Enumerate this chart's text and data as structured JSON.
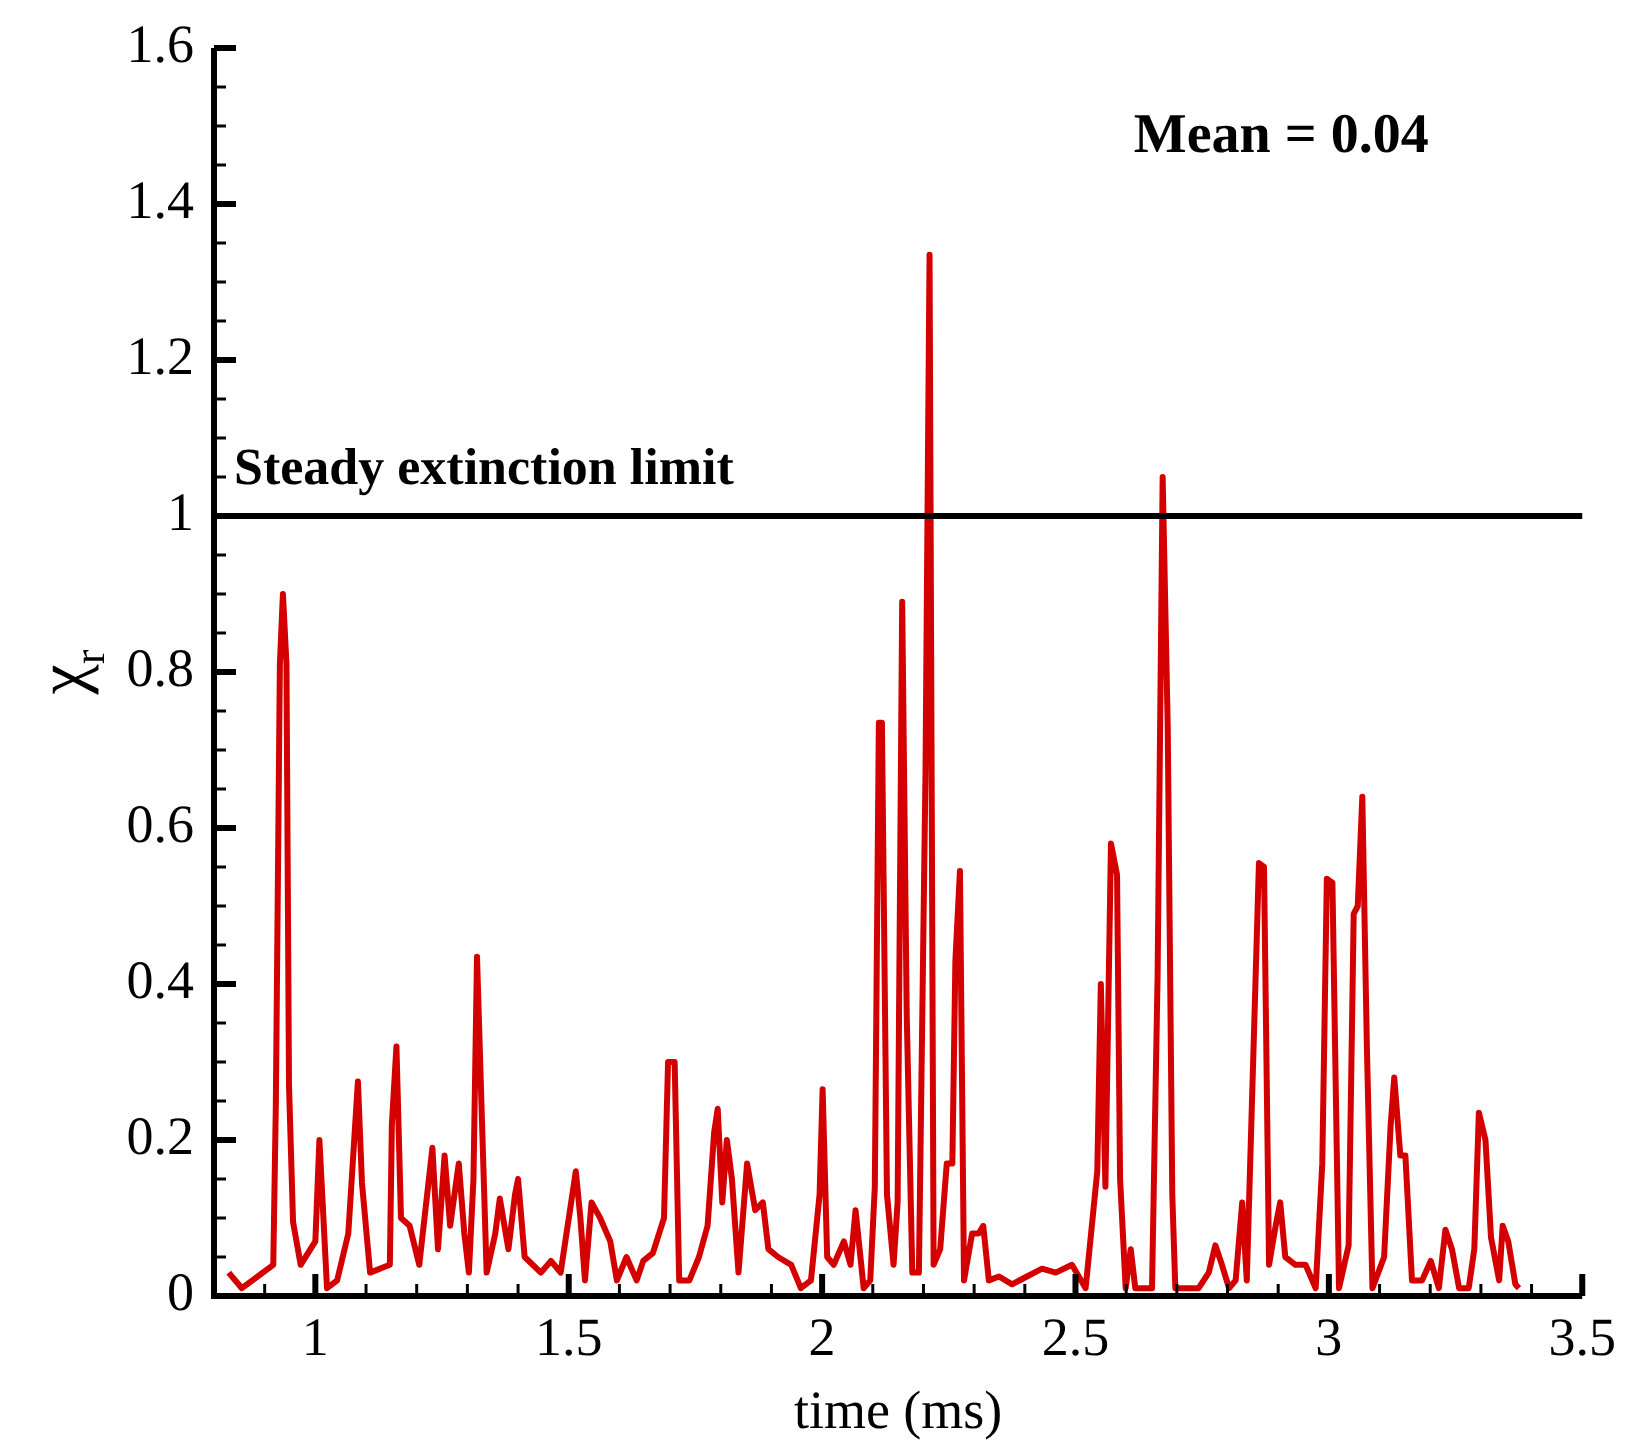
{
  "chart_data": {
    "type": "line",
    "xlabel": "time (ms)",
    "ylabel": "χ$_{r}$",
    "annotations": [
      "Mean = 0.04"
    ],
    "ref_lines": [
      {
        "axis": "y",
        "value": 1,
        "label": "Steady extinction limit",
        "color": "#000000"
      }
    ],
    "xlim": [
      0.8,
      3.5
    ],
    "ylim": [
      0,
      1.6
    ],
    "xticks": [
      {
        "value": 0.8,
        "label": null
      },
      {
        "value": 0.9,
        "label": null
      },
      1,
      {
        "value": 1.1,
        "label": null
      },
      {
        "value": 1.2,
        "label": null
      },
      {
        "value": 1.3,
        "label": null
      },
      {
        "value": 1.4,
        "label": null
      },
      1.5,
      {
        "value": 1.6,
        "label": null
      },
      {
        "value": 1.7,
        "label": null
      },
      {
        "value": 1.8,
        "label": null
      },
      {
        "value": 1.9,
        "label": null
      },
      2,
      {
        "value": 2.1,
        "label": null
      },
      {
        "value": 2.2,
        "label": null
      },
      {
        "value": 2.3,
        "label": null
      },
      {
        "value": 2.4,
        "label": null
      },
      2.5,
      {
        "value": 2.6,
        "label": null
      },
      {
        "value": 2.7,
        "label": null
      },
      {
        "value": 2.8,
        "label": null
      },
      {
        "value": 2.9,
        "label": null
      },
      3,
      {
        "value": 3.1,
        "label": null
      },
      {
        "value": 3.2,
        "label": null
      },
      {
        "value": 3.3,
        "label": null
      },
      {
        "value": 3.4,
        "label": null
      },
      3.5
    ],
    "yticks": [
      0,
      {
        "value": 0.05,
        "label": null
      },
      {
        "value": 0.1,
        "label": null
      },
      {
        "value": 0.15,
        "label": null
      },
      0.2,
      {
        "value": 0.25,
        "label": null
      },
      {
        "value": 0.3,
        "label": null
      },
      {
        "value": 0.35,
        "label": null
      },
      0.4,
      {
        "value": 0.45,
        "label": null
      },
      {
        "value": 0.5,
        "label": null
      },
      {
        "value": 0.55,
        "label": null
      },
      0.6,
      {
        "value": 0.65,
        "label": null
      },
      {
        "value": 0.7,
        "label": null
      },
      {
        "value": 0.75,
        "label": null
      },
      0.8,
      {
        "value": 0.85,
        "label": null
      },
      {
        "value": 0.9,
        "label": null
      },
      {
        "value": 0.95,
        "label": null
      },
      1,
      {
        "value": 1.05,
        "label": null
      },
      {
        "value": 1.1,
        "label": null
      },
      {
        "value": 1.15,
        "label": null
      },
      1.2,
      {
        "value": 1.25,
        "label": null
      },
      {
        "value": 1.3,
        "label": null
      },
      {
        "value": 1.35,
        "label": null
      },
      1.4,
      {
        "value": 1.45,
        "label": null
      },
      {
        "value": 1.5,
        "label": null
      },
      {
        "value": 1.55,
        "label": null
      },
      1.6
    ],
    "grid": false,
    "legend": false,
    "marker": "none",
    "line_style": "solid",
    "series": [
      {
        "color": "#d40000",
        "x": [
          0.829,
          0.855,
          0.917,
          0.922,
          0.93,
          0.936,
          0.943,
          0.948,
          0.956,
          0.971,
          1.0,
          1.008,
          1.023,
          1.043,
          1.065,
          1.084,
          1.092,
          1.108,
          1.147,
          1.151,
          1.16,
          1.169,
          1.186,
          1.205,
          1.231,
          1.242,
          1.255,
          1.266,
          1.283,
          1.294,
          1.303,
          1.312,
          1.319,
          1.329,
          1.338,
          1.355,
          1.364,
          1.381,
          1.394,
          1.4,
          1.413,
          1.445,
          1.465,
          1.484,
          1.514,
          1.523,
          1.532,
          1.545,
          1.562,
          1.582,
          1.595,
          1.614,
          1.634,
          1.647,
          1.666,
          1.688,
          1.696,
          1.709,
          1.718,
          1.738,
          1.757,
          1.774,
          1.787,
          1.794,
          1.803,
          1.812,
          1.822,
          1.835,
          1.852,
          1.868,
          1.883,
          1.894,
          1.913,
          1.939,
          1.958,
          1.978,
          1.995,
          2.001,
          2.01,
          2.023,
          2.043,
          2.056,
          2.066,
          2.082,
          2.095,
          2.104,
          2.112,
          2.118,
          2.128,
          2.141,
          2.149,
          2.158,
          2.167,
          2.178,
          2.191,
          2.204,
          2.212,
          2.22,
          2.233,
          2.246,
          2.257,
          2.263,
          2.272,
          2.28,
          2.296,
          2.309,
          2.318,
          2.329,
          2.349,
          2.375,
          2.404,
          2.434,
          2.461,
          2.493,
          2.52,
          2.543,
          2.55,
          2.559,
          2.57,
          2.582,
          2.588,
          2.599,
          2.609,
          2.618,
          2.651,
          2.662,
          2.672,
          2.682,
          2.691,
          2.697,
          2.717,
          2.743,
          2.763,
          2.776,
          2.789,
          2.803,
          2.816,
          2.829,
          2.838,
          2.862,
          2.872,
          2.882,
          2.895,
          2.904,
          2.914,
          2.934,
          2.954,
          2.974,
          2.987,
          2.996,
          3.007,
          3.02,
          3.039,
          3.049,
          3.057,
          3.066,
          3.075,
          3.086,
          3.109,
          3.122,
          3.129,
          3.141,
          3.151,
          3.164,
          3.184,
          3.201,
          3.217,
          3.23,
          3.243,
          3.257,
          3.276,
          3.287,
          3.296,
          3.309,
          3.32,
          3.336,
          3.343,
          3.354,
          3.368,
          3.375
        ],
        "values": [
          0.03,
          0.01,
          0.04,
          0.245,
          0.81,
          0.9,
          0.81,
          0.27,
          0.095,
          0.04,
          0.07,
          0.2,
          0.01,
          0.02,
          0.08,
          0.275,
          0.145,
          0.03,
          0.04,
          0.22,
          0.32,
          0.1,
          0.09,
          0.04,
          0.19,
          0.06,
          0.18,
          0.09,
          0.17,
          0.08,
          0.03,
          0.15,
          0.435,
          0.22,
          0.03,
          0.08,
          0.125,
          0.06,
          0.13,
          0.15,
          0.05,
          0.03,
          0.045,
          0.03,
          0.16,
          0.1,
          0.02,
          0.12,
          0.1,
          0.07,
          0.02,
          0.05,
          0.02,
          0.045,
          0.055,
          0.1,
          0.3,
          0.3,
          0.02,
          0.02,
          0.05,
          0.09,
          0.21,
          0.24,
          0.12,
          0.2,
          0.15,
          0.03,
          0.17,
          0.11,
          0.12,
          0.06,
          0.05,
          0.04,
          0.01,
          0.02,
          0.13,
          0.265,
          0.05,
          0.04,
          0.07,
          0.04,
          0.11,
          0.01,
          0.02,
          0.14,
          0.735,
          0.735,
          0.13,
          0.04,
          0.12,
          0.89,
          0.36,
          0.03,
          0.03,
          0.67,
          1.335,
          0.04,
          0.06,
          0.17,
          0.17,
          0.43,
          0.545,
          0.02,
          0.08,
          0.08,
          0.09,
          0.02,
          0.025,
          0.015,
          0.025,
          0.035,
          0.03,
          0.04,
          0.01,
          0.16,
          0.4,
          0.14,
          0.58,
          0.54,
          0.15,
          0.01,
          0.06,
          0.01,
          0.01,
          0.41,
          1.05,
          0.73,
          0.13,
          0.01,
          0.01,
          0.01,
          0.03,
          0.065,
          0.04,
          0.01,
          0.02,
          0.12,
          0.02,
          0.555,
          0.55,
          0.04,
          0.09,
          0.12,
          0.05,
          0.04,
          0.04,
          0.01,
          0.17,
          0.535,
          0.53,
          0.01,
          0.065,
          0.49,
          0.5,
          0.64,
          0.32,
          0.01,
          0.05,
          0.22,
          0.28,
          0.18,
          0.18,
          0.02,
          0.02,
          0.045,
          0.01,
          0.085,
          0.06,
          0.01,
          0.01,
          0.06,
          0.235,
          0.2,
          0.075,
          0.02,
          0.09,
          0.07,
          0.015,
          0.01
        ]
      }
    ]
  }
}
